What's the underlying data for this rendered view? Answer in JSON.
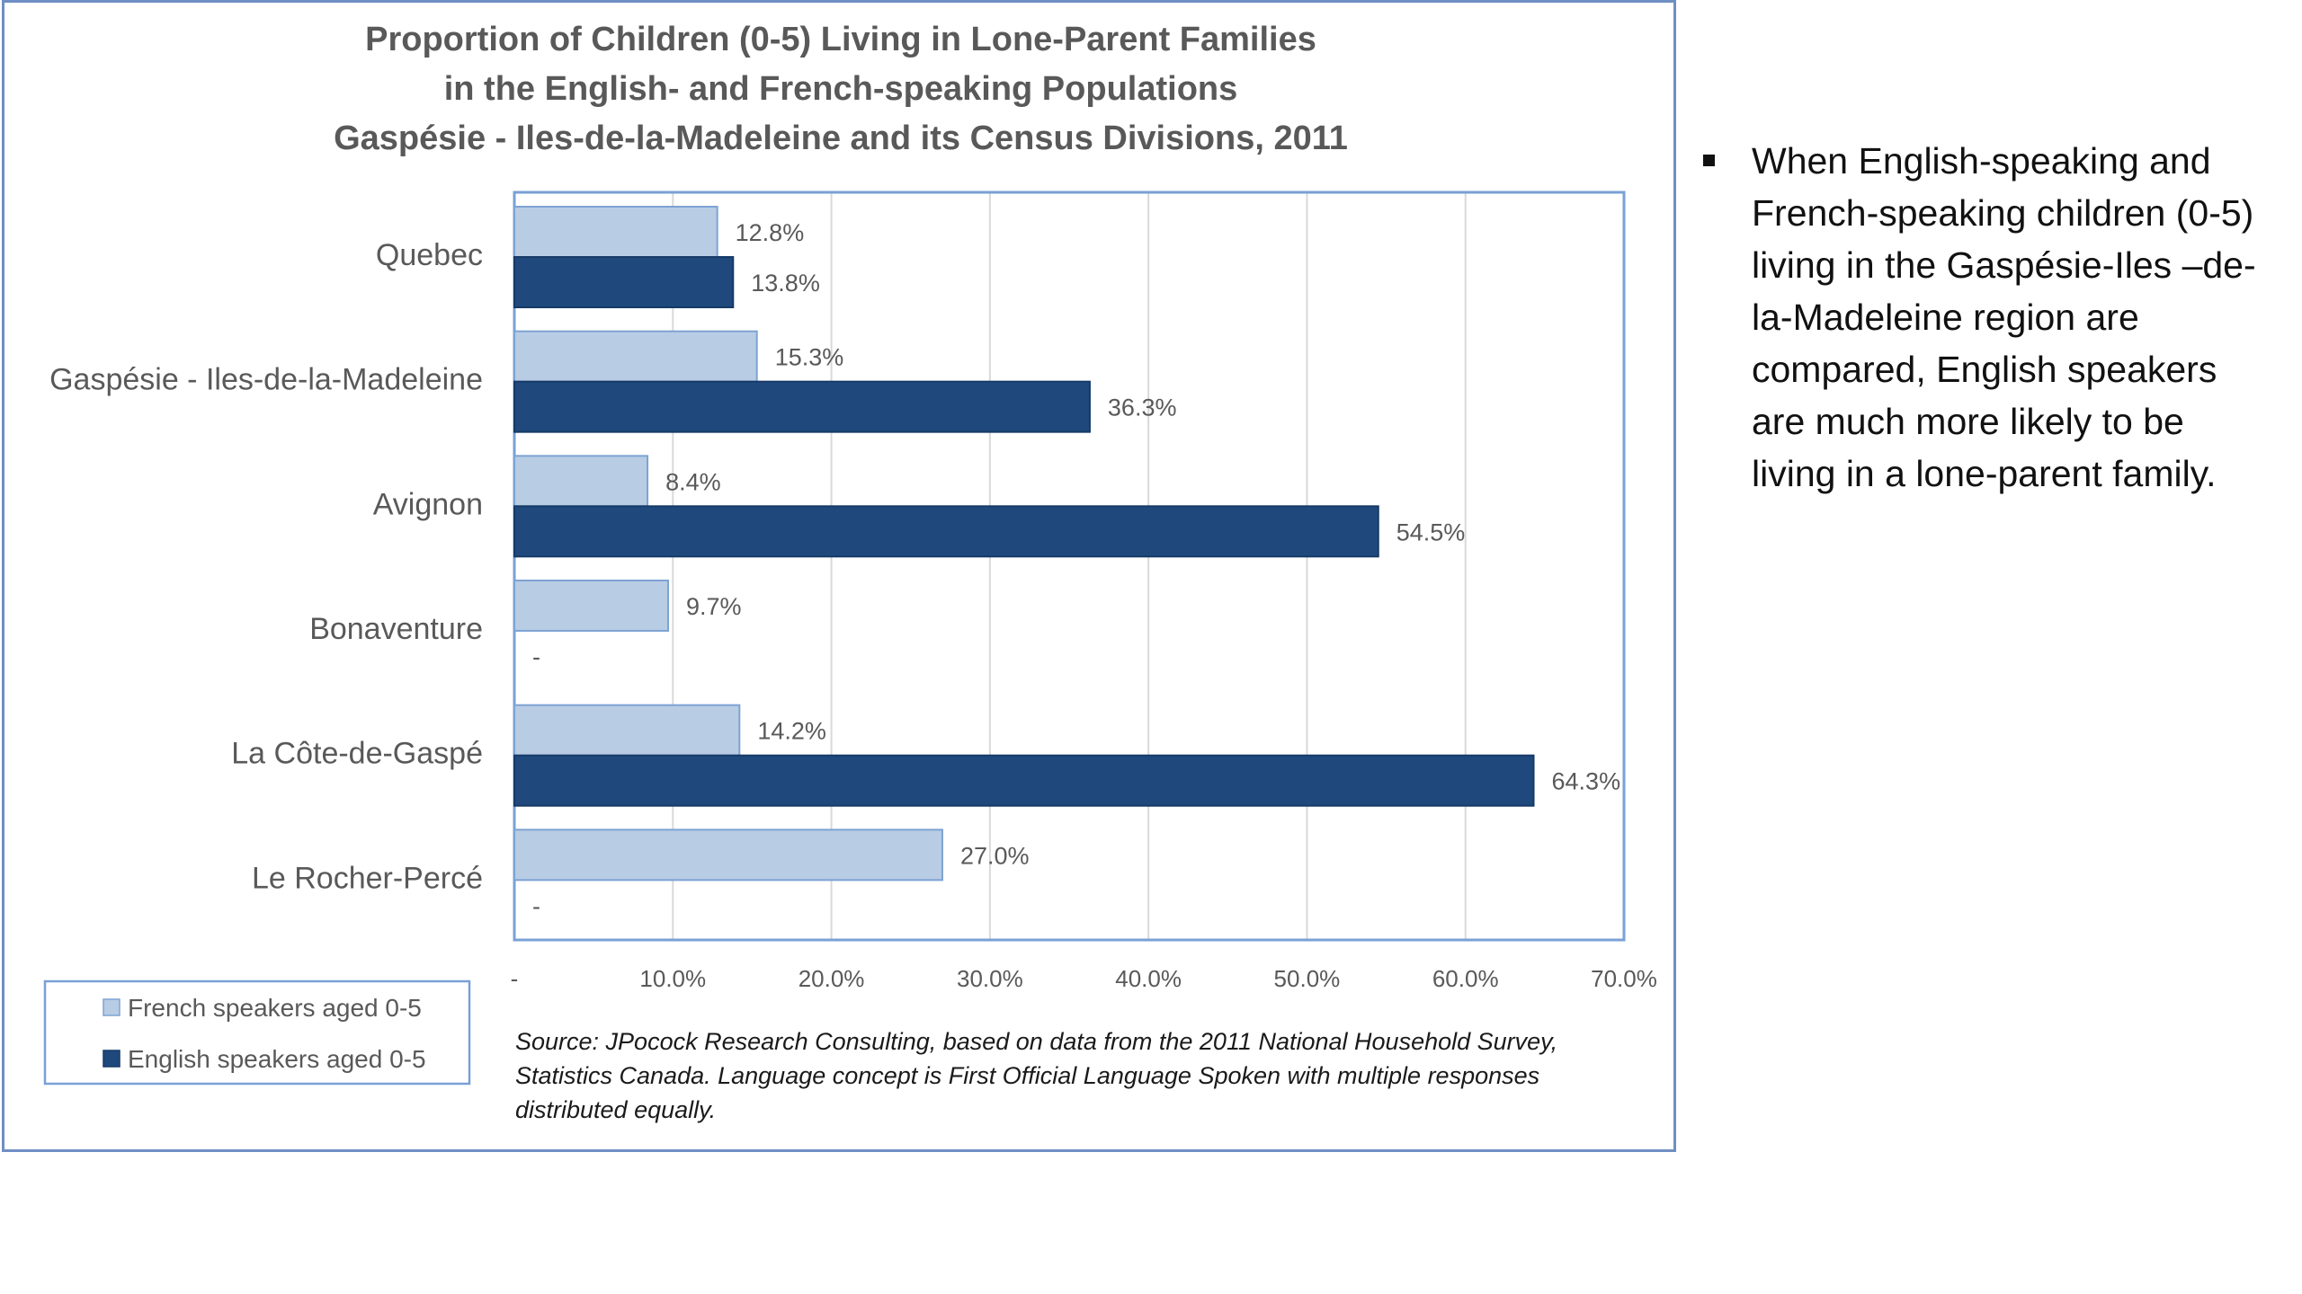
{
  "chart_data": {
    "type": "bar",
    "orientation": "horizontal",
    "title": [
      "Proportion of Children (0-5) Living in Lone-Parent Families",
      "in the English- and French-speaking Populations",
      "Gaspésie - Iles-de-la-Madeleine and its Census Divisions, 2011"
    ],
    "categories": [
      "Quebec",
      "Gaspésie - Iles-de-la-Madeleine",
      "Avignon",
      "Bonaventure",
      "La Côte-de-Gaspé",
      "Le Rocher-Percé"
    ],
    "series": [
      {
        "name": "French speakers aged 0-5",
        "color": "#b8cce4",
        "values": [
          12.8,
          15.3,
          8.4,
          9.7,
          14.2,
          27.0
        ],
        "labels": [
          "12.8%",
          "15.3%",
          "8.4%",
          "9.7%",
          "14.2%",
          "27.0%"
        ]
      },
      {
        "name": "English speakers aged 0-5",
        "color": "#1f497d",
        "values": [
          13.8,
          36.3,
          54.5,
          null,
          64.3,
          null
        ],
        "labels": [
          "13.8%",
          "36.3%",
          "54.5%",
          "-",
          "64.3%",
          "-"
        ]
      }
    ],
    "xlim": [
      0,
      70
    ],
    "xticks": [
      {
        "value": 0,
        "label": "-"
      },
      {
        "value": 10,
        "label": "10.0%"
      },
      {
        "value": 20,
        "label": "20.0%"
      },
      {
        "value": 30,
        "label": "30.0%"
      },
      {
        "value": 40,
        "label": "40.0%"
      },
      {
        "value": 50,
        "label": "50.0%"
      },
      {
        "value": 60,
        "label": "60.0%"
      },
      {
        "value": 70,
        "label": "70.0%"
      }
    ],
    "grid": true,
    "legend_position": "bottom-left",
    "source": [
      "Source: JPocock Research Consulting, based on data from the 2011 National Household Survey,",
      "Statistics Canada. Language concept is First Official Language Spoken with multiple responses",
      "distributed equally."
    ]
  },
  "notes": [
    [
      "When English-speaking and",
      "French-speaking children (0-5)",
      "living in the Gaspésie-Iles –de-",
      "la-Madeleine region are",
      "compared, English speakers",
      "are much more likely to be",
      "living in a lone-parent family."
    ]
  ]
}
